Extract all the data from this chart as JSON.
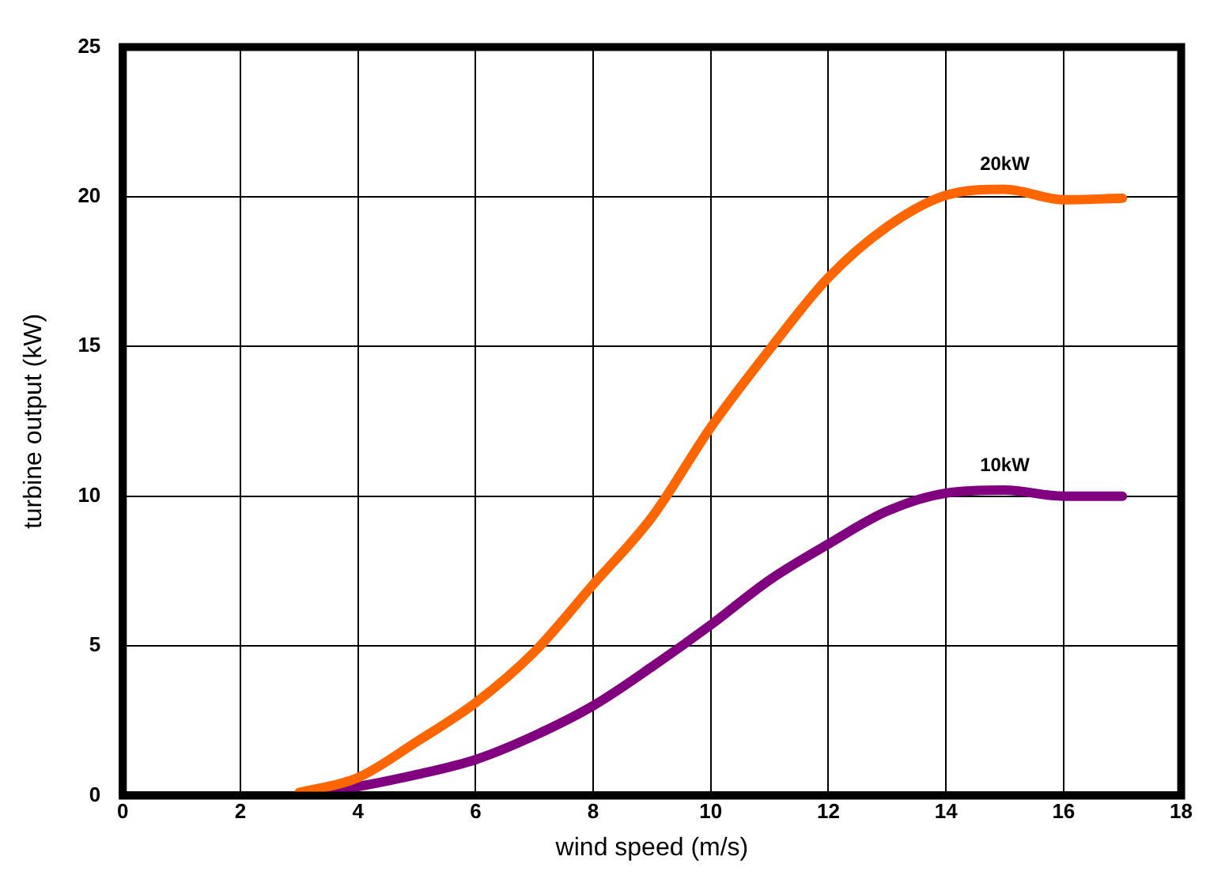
{
  "chart_data": {
    "type": "line",
    "xlabel": "wind speed (m/s)",
    "ylabel": "turbine output (kW)",
    "x": [
      3,
      4,
      5,
      6,
      7,
      8,
      9,
      10,
      11,
      12,
      13,
      14,
      15,
      16,
      17
    ],
    "series": [
      {
        "name": "20kW",
        "color": "#ff6600",
        "values": [
          0.1,
          0.6,
          1.8,
          3.1,
          4.8,
          7.05,
          9.3,
          12.3,
          14.9,
          17.3,
          19.0,
          20.05,
          20.25,
          19.9,
          19.95
        ]
      },
      {
        "name": "10kW",
        "color": "#800080",
        "values": [
          0.05,
          0.3,
          0.7,
          1.2,
          2.0,
          3.0,
          4.3,
          5.7,
          7.2,
          8.4,
          9.5,
          10.1,
          10.2,
          10.0,
          10.0
        ]
      }
    ],
    "xlim": [
      0,
      18
    ],
    "xticks": [
      0,
      2,
      4,
      6,
      8,
      10,
      12,
      14,
      16,
      18
    ],
    "ylim": [
      0,
      25
    ],
    "yticks": [
      0,
      5,
      10,
      15,
      20,
      25
    ],
    "grid": true,
    "legend": false,
    "marker": "none",
    "line_style": "solid"
  }
}
